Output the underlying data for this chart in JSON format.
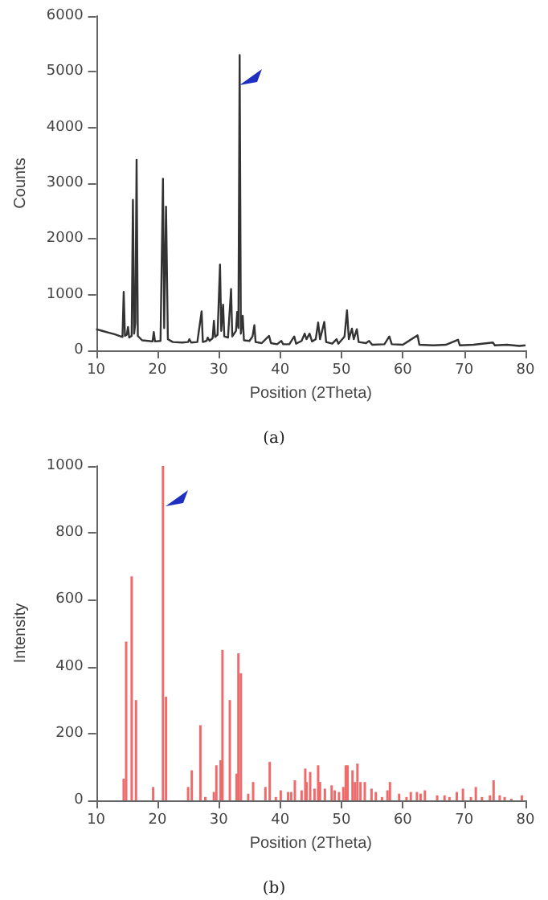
{
  "chart_data": [
    {
      "type": "line",
      "xlabel": "Position (2Theta)",
      "ylabel": "Counts",
      "color": "#333333",
      "marker": "none",
      "annotations": [
        "(a)"
      ],
      "xlim": [
        10,
        80
      ],
      "xticks": [
        10,
        20,
        30,
        40,
        50,
        60,
        70,
        80
      ],
      "ylim": [
        0,
        6000
      ],
      "yticks": [
        0,
        1000,
        2000,
        3000,
        4000,
        5000,
        6000
      ],
      "x": [
        10,
        11,
        12,
        13,
        14,
        14.3,
        14.5,
        14.7,
        15,
        15.2,
        15.4,
        15.8,
        16,
        16.2,
        16.4,
        16.6,
        16.8,
        17.5,
        18.5,
        19.2,
        19.4,
        19.6,
        20.5,
        20.9,
        21.1,
        21.4,
        21.7,
        22.5,
        24,
        25,
        25.2,
        25.5,
        26.5,
        27.2,
        27.4,
        28,
        28.2,
        28.5,
        29,
        29.2,
        29.4,
        29.8,
        30.2,
        30.4,
        30.7,
        30.9,
        31.5,
        32,
        32.2,
        32.8,
        33,
        33.2,
        33.4,
        33.6,
        33.9,
        34.1,
        35,
        35.5,
        35.8,
        36,
        37,
        38.2,
        38.5,
        39.5,
        40.2,
        40.5,
        41.5,
        42.3,
        42.6,
        43.5,
        44,
        44.3,
        44.8,
        45.2,
        45.8,
        46.2,
        46.5,
        47.2,
        47.5,
        48.5,
        49.2,
        49.5,
        50.5,
        50.9,
        51.2,
        51.7,
        52,
        52.5,
        52.8,
        54,
        54.5,
        55,
        57,
        57.8,
        58.2,
        60,
        62.4,
        62.7,
        65,
        67,
        69,
        69.3,
        71.5,
        74.7,
        75,
        77,
        79,
        80
      ],
      "values": [
        380,
        350,
        320,
        290,
        250,
        240,
        1050,
        260,
        280,
        420,
        230,
        260,
        2700,
        300,
        500,
        3420,
        260,
        180,
        170,
        160,
        330,
        160,
        170,
        3080,
        400,
        2580,
        200,
        150,
        140,
        150,
        200,
        140,
        150,
        700,
        150,
        170,
        230,
        170,
        220,
        530,
        240,
        280,
        1540,
        350,
        820,
        250,
        230,
        1100,
        250,
        350,
        690,
        400,
        5300,
        300,
        620,
        180,
        170,
        250,
        450,
        150,
        130,
        260,
        130,
        110,
        170,
        110,
        110,
        250,
        120,
        170,
        300,
        200,
        300,
        160,
        200,
        500,
        200,
        510,
        150,
        120,
        200,
        120,
        250,
        720,
        200,
        390,
        200,
        380,
        150,
        130,
        170,
        100,
        110,
        250,
        110,
        100,
        270,
        100,
        90,
        100,
        190,
        90,
        100,
        140,
        90,
        100,
        80,
        90
      ]
    },
    {
      "type": "bar",
      "xlabel": "Position (2Theta)",
      "ylabel": "Intensity",
      "color": "#ef6b6b",
      "annotations": [
        "(b)"
      ],
      "xlim": [
        10,
        80
      ],
      "xticks": [
        10,
        20,
        30,
        40,
        50,
        60,
        70,
        80
      ],
      "ylim": [
        0,
        1000
      ],
      "yticks": [
        0,
        200,
        400,
        600,
        800,
        1000
      ],
      "x": [
        14.5,
        14.9,
        15.8,
        16.5,
        19.3,
        20.9,
        21.4,
        25,
        25.6,
        27,
        27.8,
        29.2,
        29.6,
        30.3,
        30.6,
        31.8,
        32.9,
        33.2,
        33.6,
        34.8,
        35.6,
        37.6,
        38.3,
        39.3,
        40.1,
        41.3,
        41.8,
        42.4,
        43.5,
        44.1,
        44.3,
        44.9,
        45.6,
        46.2,
        46.5,
        47.3,
        48.4,
        48.9,
        49.6,
        50.3,
        50.7,
        51,
        51.8,
        52.2,
        52.6,
        53.1,
        53.8,
        54.9,
        55.6,
        56.6,
        57.5,
        57.9,
        59.4,
        60.6,
        61.3,
        62.3,
        62.9,
        63.6,
        65.6,
        66.8,
        67.6,
        68.8,
        69.8,
        71.1,
        71.9,
        72.9,
        74.2,
        74.8,
        75.8,
        76.6,
        77.7,
        79.4
      ],
      "values": [
        65,
        475,
        670,
        300,
        40,
        1000,
        310,
        40,
        90,
        225,
        10,
        25,
        105,
        120,
        450,
        300,
        80,
        440,
        380,
        20,
        55,
        40,
        115,
        10,
        30,
        25,
        25,
        60,
        30,
        95,
        55,
        85,
        35,
        105,
        55,
        35,
        45,
        30,
        25,
        40,
        105,
        105,
        90,
        55,
        110,
        55,
        55,
        35,
        25,
        10,
        30,
        55,
        20,
        10,
        25,
        25,
        20,
        30,
        15,
        15,
        10,
        25,
        35,
        10,
        40,
        10,
        15,
        60,
        15,
        10,
        5,
        15
      ]
    }
  ]
}
